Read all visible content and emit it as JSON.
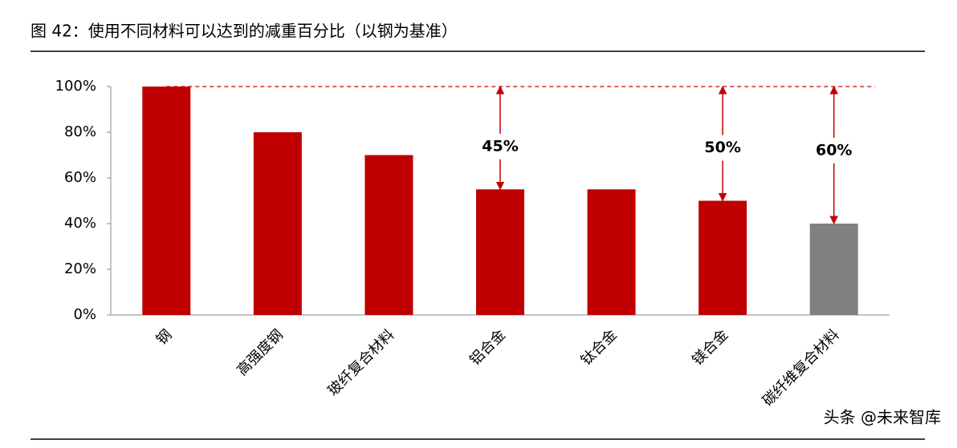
{
  "chart_data": {
    "type": "bar",
    "title": "图 42：使用不同材料可以达到的减重百分比（以钢为基准）",
    "categories": [
      "钢",
      "高强度钢",
      "玻纤复合材料",
      "铝合金",
      "钛合金",
      "镁合金",
      "碳纤维复合材料"
    ],
    "values": [
      100,
      80,
      70,
      55,
      55,
      50,
      40
    ],
    "colors": [
      "#c00000",
      "#c00000",
      "#c00000",
      "#c00000",
      "#c00000",
      "#c00000",
      "#808080"
    ],
    "ylim": [
      0,
      100
    ],
    "yticks": [
      {
        "value": 0,
        "label": "0%"
      },
      {
        "value": 20,
        "label": "20%"
      },
      {
        "value": 40,
        "label": "40%"
      },
      {
        "value": 60,
        "label": "60%"
      },
      {
        "value": 80,
        "label": "80%"
      },
      {
        "value": 100,
        "label": "100%"
      }
    ],
    "reference_line": 100,
    "annotations": [
      {
        "category": "铝合金",
        "value": 45,
        "label": "45%"
      },
      {
        "category": "镁合金",
        "value": 50,
        "label": "50%"
      },
      {
        "category": "碳纤维复合材料",
        "value": 60,
        "label": "60%"
      }
    ],
    "watermark": "头条 @未来智库"
  }
}
